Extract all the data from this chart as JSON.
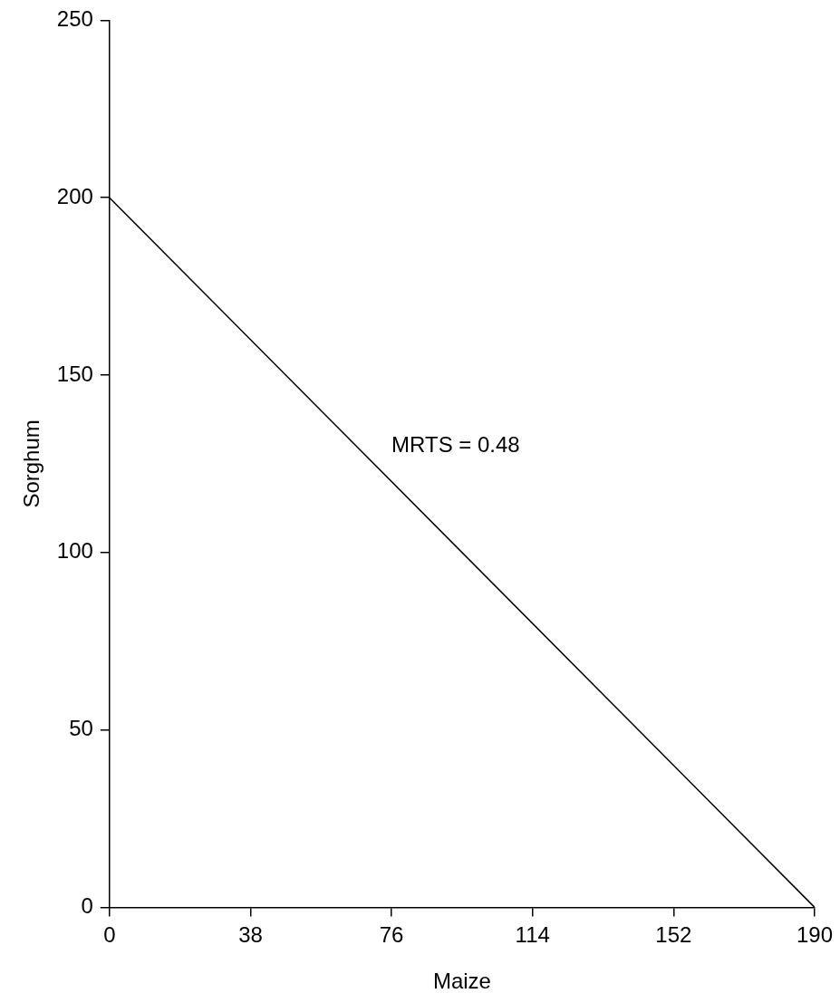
{
  "chart_data": {
    "type": "line",
    "xlabel": "Maize",
    "ylabel": "Sorghum",
    "x": [
      0,
      190
    ],
    "series": [
      {
        "color": "#000000",
        "values": [
          200,
          0
        ]
      }
    ],
    "xlim": [
      0,
      190
    ],
    "xticks": [
      0,
      38,
      76,
      114,
      152,
      190
    ],
    "ylim": [
      0,
      250
    ],
    "yticks": [
      0,
      50,
      100,
      150,
      200,
      250
    ],
    "grid": false,
    "legend": false,
    "marker": "none",
    "line_style": "solid",
    "annotations": [
      "MRTS = 0.48"
    ]
  }
}
